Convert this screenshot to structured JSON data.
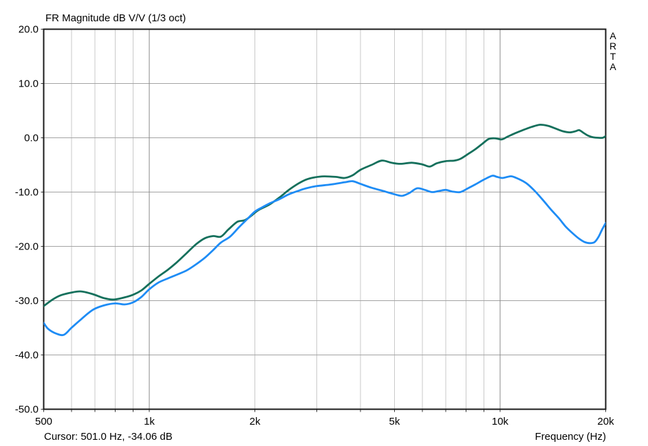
{
  "chart": {
    "title": "FR Magnitude dB V/V (1/3 oct)",
    "watermark": "ARTA",
    "status": {
      "cursor_readout": "Cursor: 501.0 Hz, -34.06 dB",
      "x_axis_label": "Frequency (Hz)"
    }
  },
  "colors": {
    "background": "#ffffff",
    "border": "#1a1a1a",
    "grid_horizontal": "#a3a3a3",
    "grid_minor_vertical": "#c9c9c9",
    "grid_major_vertical": "#8a8a8a",
    "trace_green": "#15705c",
    "trace_blue": "#1e8cf5",
    "text": "#000000"
  },
  "chart_data": {
    "type": "line",
    "title": "FR Magnitude dB V/V (1/3 oct)",
    "xlabel": "Frequency (Hz)",
    "x_scale": "log",
    "xlim": [
      500,
      20000
    ],
    "ylim": [
      -50,
      20
    ],
    "grid": true,
    "legend_position": "none",
    "y_ticks": [
      {
        "value": 20,
        "label": "20.0"
      },
      {
        "value": 10,
        "label": "10.0"
      },
      {
        "value": 0,
        "label": "0.0"
      },
      {
        "value": -10,
        "label": "-10.0"
      },
      {
        "value": -20,
        "label": "-20.0"
      },
      {
        "value": -30,
        "label": "-30.0"
      },
      {
        "value": -40,
        "label": "-40.0"
      },
      {
        "value": -50,
        "label": "-50.0"
      }
    ],
    "x_ticks": [
      {
        "value": 500,
        "label": "500"
      },
      {
        "value": 1000,
        "label": "1k"
      },
      {
        "value": 2000,
        "label": "2k"
      },
      {
        "value": 5000,
        "label": "5k"
      },
      {
        "value": 10000,
        "label": "10k"
      },
      {
        "value": 20000,
        "label": "20k"
      }
    ],
    "minor_gridlines": [
      600,
      700,
      800,
      900,
      2000,
      3000,
      4000,
      5000,
      6000,
      7000,
      8000,
      9000
    ],
    "major_gridlines": [
      1000,
      10000
    ],
    "cursor": {
      "frequency_hz": 501.0,
      "magnitude_db": -34.06
    },
    "series": [
      {
        "name": "trace-green",
        "color": "#15705c",
        "points": [
          [
            500,
            -31
          ],
          [
            530,
            -29.8
          ],
          [
            560,
            -29
          ],
          [
            600,
            -28.5
          ],
          [
            640,
            -28.3
          ],
          [
            690,
            -28.8
          ],
          [
            740,
            -29.5
          ],
          [
            790,
            -29.8
          ],
          [
            850,
            -29.4
          ],
          [
            900,
            -28.9
          ],
          [
            950,
            -28.1
          ],
          [
            1000,
            -26.9
          ],
          [
            1060,
            -25.6
          ],
          [
            1130,
            -24.3
          ],
          [
            1200,
            -22.9
          ],
          [
            1280,
            -21.2
          ],
          [
            1360,
            -19.6
          ],
          [
            1440,
            -18.5
          ],
          [
            1520,
            -18.1
          ],
          [
            1600,
            -18.2
          ],
          [
            1680,
            -16.9
          ],
          [
            1780,
            -15.5
          ],
          [
            1870,
            -15.2
          ],
          [
            1950,
            -14.4
          ],
          [
            2050,
            -13.3
          ],
          [
            2200,
            -12.3
          ],
          [
            2350,
            -11
          ],
          [
            2500,
            -9.6
          ],
          [
            2650,
            -8.5
          ],
          [
            2800,
            -7.7
          ],
          [
            2950,
            -7.3
          ],
          [
            3150,
            -7.1
          ],
          [
            3400,
            -7.2
          ],
          [
            3600,
            -7.4
          ],
          [
            3800,
            -6.9
          ],
          [
            4000,
            -5.9
          ],
          [
            4300,
            -5
          ],
          [
            4600,
            -4.2
          ],
          [
            4900,
            -4.6
          ],
          [
            5200,
            -4.8
          ],
          [
            5600,
            -4.6
          ],
          [
            6000,
            -4.9
          ],
          [
            6300,
            -5.3
          ],
          [
            6600,
            -4.7
          ],
          [
            7000,
            -4.3
          ],
          [
            7400,
            -4.2
          ],
          [
            7700,
            -3.9
          ],
          [
            8100,
            -3
          ],
          [
            8500,
            -2.1
          ],
          [
            8900,
            -1.1
          ],
          [
            9300,
            -0.2
          ],
          [
            9700,
            -0.1
          ],
          [
            10100,
            -0.3
          ],
          [
            10500,
            0.2
          ],
          [
            11000,
            0.8
          ],
          [
            11600,
            1.4
          ],
          [
            12300,
            2
          ],
          [
            13000,
            2.4
          ],
          [
            13700,
            2.2
          ],
          [
            14400,
            1.7
          ],
          [
            15100,
            1.2
          ],
          [
            15800,
            1
          ],
          [
            16400,
            1.2
          ],
          [
            16800,
            1.4
          ],
          [
            17300,
            0.9
          ],
          [
            17800,
            0.4
          ],
          [
            18400,
            0.1
          ],
          [
            19100,
            0
          ],
          [
            19600,
            0
          ],
          [
            20000,
            0.3
          ]
        ]
      },
      {
        "name": "trace-blue",
        "color": "#1e8cf5",
        "points": [
          [
            500,
            -34.1
          ],
          [
            515,
            -35.2
          ],
          [
            540,
            -36
          ],
          [
            570,
            -36.3
          ],
          [
            600,
            -35
          ],
          [
            640,
            -33.4
          ],
          [
            690,
            -31.7
          ],
          [
            740,
            -30.9
          ],
          [
            800,
            -30.5
          ],
          [
            850,
            -30.7
          ],
          [
            900,
            -30.3
          ],
          [
            950,
            -29.3
          ],
          [
            1000,
            -27.9
          ],
          [
            1060,
            -26.7
          ],
          [
            1130,
            -25.9
          ],
          [
            1200,
            -25.2
          ],
          [
            1280,
            -24.4
          ],
          [
            1360,
            -23.3
          ],
          [
            1440,
            -22.1
          ],
          [
            1520,
            -20.7
          ],
          [
            1600,
            -19.3
          ],
          [
            1700,
            -18.2
          ],
          [
            1800,
            -16.5
          ],
          [
            1900,
            -15
          ],
          [
            2000,
            -13.6
          ],
          [
            2100,
            -12.8
          ],
          [
            2200,
            -12.1
          ],
          [
            2350,
            -11.3
          ],
          [
            2500,
            -10.4
          ],
          [
            2650,
            -9.8
          ],
          [
            2800,
            -9.3
          ],
          [
            3000,
            -8.9
          ],
          [
            3300,
            -8.6
          ],
          [
            3600,
            -8.2
          ],
          [
            3800,
            -8
          ],
          [
            4000,
            -8.5
          ],
          [
            4300,
            -9.2
          ],
          [
            4700,
            -9.9
          ],
          [
            5000,
            -10.4
          ],
          [
            5250,
            -10.7
          ],
          [
            5500,
            -10.2
          ],
          [
            5800,
            -9.3
          ],
          [
            6100,
            -9.6
          ],
          [
            6400,
            -10
          ],
          [
            6700,
            -9.8
          ],
          [
            7000,
            -9.6
          ],
          [
            7300,
            -9.9
          ],
          [
            7700,
            -10
          ],
          [
            8100,
            -9.3
          ],
          [
            8500,
            -8.6
          ],
          [
            9000,
            -7.7
          ],
          [
            9500,
            -7
          ],
          [
            9800,
            -7.2
          ],
          [
            10150,
            -7.4
          ],
          [
            10500,
            -7.2
          ],
          [
            10800,
            -7.1
          ],
          [
            11300,
            -7.6
          ],
          [
            11900,
            -8.4
          ],
          [
            12600,
            -9.9
          ],
          [
            13300,
            -11.6
          ],
          [
            14000,
            -13.3
          ],
          [
            14700,
            -14.8
          ],
          [
            15400,
            -16.4
          ],
          [
            16100,
            -17.6
          ],
          [
            16800,
            -18.6
          ],
          [
            17400,
            -19.2
          ],
          [
            18000,
            -19.4
          ],
          [
            18600,
            -19.2
          ],
          [
            19100,
            -18.2
          ],
          [
            19500,
            -17
          ],
          [
            20000,
            -15.7
          ]
        ]
      }
    ]
  }
}
